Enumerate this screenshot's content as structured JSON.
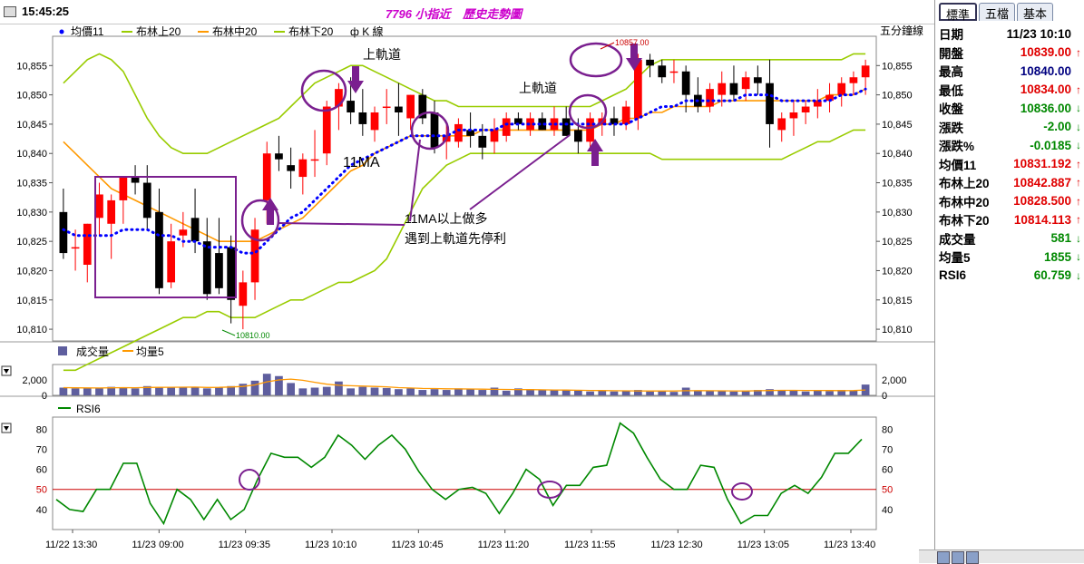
{
  "header": {
    "clock": "15:45:25",
    "title": "7796 小指近",
    "subtitle": "歷史走勢圖"
  },
  "colors": {
    "bull": "#ff0000",
    "bear": "#000000",
    "ma11": "#0000ff",
    "boll_upper": "#99cc00",
    "boll_mid": "#ff9900",
    "boll_lower": "#99cc00",
    "annotation": "#7a1f8f",
    "volume": "#5e5e9e",
    "rsi": "#008800",
    "rsi_ref": "#cc0000"
  },
  "chart_data": [
    {
      "type": "candlestick",
      "legend": [
        "均價11",
        "布林上20",
        "布林中20",
        "布林下20",
        "ф K 線"
      ],
      "y_axis_label": "五分鐘線",
      "ylim": [
        10808,
        10860
      ],
      "yticks": [
        10810,
        10815,
        10820,
        10825,
        10830,
        10835,
        10840,
        10845,
        10850,
        10855
      ],
      "ytick_labels": [
        "10,810",
        "10,815",
        "10,820",
        "10,825",
        "10,830",
        "10,835",
        "10,840",
        "10,845",
        "10,850",
        "10,855"
      ],
      "candles": [
        {
          "o": 10830,
          "h": 10834,
          "l": 10822,
          "c": 10823
        },
        {
          "o": 10824,
          "h": 10827,
          "l": 10820,
          "c": 10824
        },
        {
          "o": 10821,
          "h": 10828,
          "l": 10818,
          "c": 10828
        },
        {
          "o": 10829,
          "h": 10835,
          "l": 10826,
          "c": 10833
        },
        {
          "o": 10828,
          "h": 10833,
          "l": 10822,
          "c": 10832
        },
        {
          "o": 10832,
          "h": 10836,
          "l": 10828,
          "c": 10836
        },
        {
          "o": 10836,
          "h": 10838,
          "l": 10833,
          "c": 10835
        },
        {
          "o": 10835,
          "h": 10838,
          "l": 10827,
          "c": 10829
        },
        {
          "o": 10830,
          "h": 10834,
          "l": 10816,
          "c": 10817
        },
        {
          "o": 10818,
          "h": 10828,
          "l": 10817,
          "c": 10825
        },
        {
          "o": 10826,
          "h": 10830,
          "l": 10824,
          "c": 10827
        },
        {
          "o": 10829,
          "h": 10834,
          "l": 10823,
          "c": 10825
        },
        {
          "o": 10825,
          "h": 10829,
          "l": 10815,
          "c": 10816
        },
        {
          "o": 10823,
          "h": 10829,
          "l": 10816,
          "c": 10817
        },
        {
          "o": 10824,
          "h": 10826,
          "l": 10811,
          "c": 10815
        },
        {
          "o": 10814,
          "h": 10820,
          "l": 10810,
          "c": 10818
        },
        {
          "o": 10818,
          "h": 10829,
          "l": 10815,
          "c": 10827
        },
        {
          "o": 10832,
          "h": 10842,
          "l": 10828,
          "c": 10840
        },
        {
          "o": 10840,
          "h": 10843,
          "l": 10837,
          "c": 10839
        },
        {
          "o": 10838,
          "h": 10841,
          "l": 10834,
          "c": 10837
        },
        {
          "o": 10836,
          "h": 10840,
          "l": 10833,
          "c": 10839
        },
        {
          "o": 10839,
          "h": 10844,
          "l": 10836,
          "c": 10839
        },
        {
          "o": 10840,
          "h": 10849,
          "l": 10838,
          "c": 10848
        },
        {
          "o": 10848,
          "h": 10852,
          "l": 10844,
          "c": 10851
        },
        {
          "o": 10849,
          "h": 10853,
          "l": 10845,
          "c": 10847
        },
        {
          "o": 10847,
          "h": 10851,
          "l": 10843,
          "c": 10845
        },
        {
          "o": 10844,
          "h": 10848,
          "l": 10842,
          "c": 10847
        },
        {
          "o": 10848,
          "h": 10851,
          "l": 10845,
          "c": 10848
        },
        {
          "o": 10848,
          "h": 10852,
          "l": 10843,
          "c": 10847
        },
        {
          "o": 10846,
          "h": 10850,
          "l": 10844,
          "c": 10850
        },
        {
          "o": 10850,
          "h": 10851,
          "l": 10845,
          "c": 10846
        },
        {
          "o": 10847,
          "h": 10849,
          "l": 10840,
          "c": 10841
        },
        {
          "o": 10842,
          "h": 10845,
          "l": 10839,
          "c": 10843
        },
        {
          "o": 10842,
          "h": 10846,
          "l": 10841,
          "c": 10845
        },
        {
          "o": 10844,
          "h": 10847,
          "l": 10841,
          "c": 10843
        },
        {
          "o": 10843,
          "h": 10845,
          "l": 10839,
          "c": 10841
        },
        {
          "o": 10842,
          "h": 10846,
          "l": 10840,
          "c": 10844
        },
        {
          "o": 10843,
          "h": 10847,
          "l": 10842,
          "c": 10846
        },
        {
          "o": 10846,
          "h": 10847,
          "l": 10844,
          "c": 10845
        },
        {
          "o": 10844,
          "h": 10847,
          "l": 10843,
          "c": 10846
        },
        {
          "o": 10846,
          "h": 10847,
          "l": 10844,
          "c": 10844
        },
        {
          "o": 10844,
          "h": 10848,
          "l": 10843,
          "c": 10846
        },
        {
          "o": 10846,
          "h": 10848,
          "l": 10843,
          "c": 10843
        },
        {
          "o": 10844,
          "h": 10846,
          "l": 10840,
          "c": 10842
        },
        {
          "o": 10842,
          "h": 10847,
          "l": 10841,
          "c": 10846
        },
        {
          "o": 10845,
          "h": 10847,
          "l": 10843,
          "c": 10846
        },
        {
          "o": 10846,
          "h": 10848,
          "l": 10843,
          "c": 10845
        },
        {
          "o": 10845,
          "h": 10849,
          "l": 10844,
          "c": 10848
        },
        {
          "o": 10846,
          "h": 10857,
          "l": 10844,
          "c": 10856
        },
        {
          "o": 10856,
          "h": 10857,
          "l": 10853,
          "c": 10855
        },
        {
          "o": 10855,
          "h": 10856,
          "l": 10852,
          "c": 10853
        },
        {
          "o": 10854,
          "h": 10856,
          "l": 10852,
          "c": 10854
        },
        {
          "o": 10854,
          "h": 10855,
          "l": 10847,
          "c": 10850
        },
        {
          "o": 10850,
          "h": 10853,
          "l": 10847,
          "c": 10848
        },
        {
          "o": 10848,
          "h": 10852,
          "l": 10847,
          "c": 10851
        },
        {
          "o": 10850,
          "h": 10854,
          "l": 10848,
          "c": 10852
        },
        {
          "o": 10852,
          "h": 10855,
          "l": 10849,
          "c": 10850
        },
        {
          "o": 10851,
          "h": 10854,
          "l": 10849,
          "c": 10853
        },
        {
          "o": 10853,
          "h": 10855,
          "l": 10850,
          "c": 10852
        },
        {
          "o": 10852,
          "h": 10856,
          "l": 10841,
          "c": 10845
        },
        {
          "o": 10844,
          "h": 10847,
          "l": 10842,
          "c": 10846
        },
        {
          "o": 10846,
          "h": 10849,
          "l": 10843,
          "c": 10847
        },
        {
          "o": 10847,
          "h": 10849,
          "l": 10845,
          "c": 10848
        },
        {
          "o": 10848,
          "h": 10851,
          "l": 10846,
          "c": 10849
        },
        {
          "o": 10849,
          "h": 10852,
          "l": 10847,
          "c": 10850
        },
        {
          "o": 10850,
          "h": 10853,
          "l": 10848,
          "c": 10852
        },
        {
          "o": 10852,
          "h": 10854,
          "l": 10850,
          "c": 10853
        },
        {
          "o": 10853,
          "h": 10856,
          "l": 10850,
          "c": 10855
        }
      ],
      "ma11": [
        10827,
        10826,
        10826,
        10826,
        10826,
        10827,
        10827,
        10827,
        10826,
        10826,
        10825,
        10825,
        10824,
        10824,
        10824,
        10823,
        10823,
        10825,
        10827,
        10829,
        10830,
        10832,
        10834,
        10836,
        10838,
        10839,
        10840,
        10841,
        10842,
        10843,
        10843,
        10843,
        10843,
        10844,
        10844,
        10844,
        10844,
        10845,
        10845,
        10845,
        10845,
        10845,
        10845,
        10845,
        10845,
        10845,
        10845,
        10845,
        10846,
        10847,
        10848,
        10848,
        10849,
        10849,
        10849,
        10849,
        10849,
        10850,
        10850,
        10850,
        10849,
        10849,
        10849,
        10849,
        10849,
        10850,
        10850,
        10851
      ],
      "boll_upper": [
        10852,
        10854,
        10856,
        10857,
        10856,
        10854,
        10850,
        10846,
        10843,
        10841,
        10840,
        10840,
        10840,
        10841,
        10842,
        10843,
        10844,
        10845,
        10846,
        10848,
        10850,
        10852,
        10853,
        10854,
        10855,
        10855,
        10854,
        10853,
        10852,
        10851,
        10850,
        10849,
        10849,
        10848,
        10848,
        10848,
        10848,
        10848,
        10848,
        10848,
        10848,
        10848,
        10848,
        10848,
        10848,
        10849,
        10850,
        10851,
        10853,
        10855,
        10856,
        10856,
        10856,
        10856,
        10856,
        10856,
        10856,
        10856,
        10856,
        10856,
        10856,
        10856,
        10856,
        10856,
        10856,
        10856,
        10857,
        10857
      ],
      "boll_mid": [
        10842,
        10840,
        10838,
        10836,
        10834,
        10833,
        10832,
        10831,
        10830,
        10829,
        10828,
        10827,
        10826,
        10825,
        10825,
        10825,
        10825,
        10826,
        10827,
        10828,
        10829,
        10831,
        10833,
        10835,
        10837,
        10838,
        10840,
        10841,
        10842,
        10843,
        10843,
        10843,
        10843,
        10843,
        10843,
        10844,
        10844,
        10844,
        10844,
        10844,
        10844,
        10844,
        10844,
        10844,
        10844,
        10845,
        10845,
        10846,
        10846,
        10847,
        10847,
        10848,
        10848,
        10848,
        10848,
        10849,
        10849,
        10849,
        10849,
        10849,
        10849,
        10849,
        10849,
        10849,
        10850,
        10850,
        10850,
        10851
      ],
      "boll_lower": [
        10803,
        10803,
        10804,
        10805,
        10806,
        10807,
        10808,
        10809,
        10810,
        10811,
        10812,
        10812,
        10813,
        10813,
        10812,
        10812,
        10812,
        10813,
        10814,
        10815,
        10815,
        10816,
        10817,
        10818,
        10818,
        10819,
        10820,
        10822,
        10826,
        10830,
        10834,
        10836,
        10838,
        10839,
        10840,
        10840,
        10840,
        10840,
        10840,
        10840,
        10840,
        10840,
        10840,
        10840,
        10840,
        10840,
        10840,
        10840,
        10840,
        10840,
        10839,
        10839,
        10839,
        10839,
        10839,
        10839,
        10839,
        10839,
        10839,
        10839,
        10839,
        10840,
        10841,
        10842,
        10842,
        10843,
        10844,
        10844
      ],
      "annotations": [
        {
          "text": "上軌道",
          "kind": "label"
        },
        {
          "text": "上軌道",
          "kind": "label"
        },
        {
          "text": "11MA",
          "kind": "label"
        },
        {
          "text": "11MA以上做多",
          "kind": "label"
        },
        {
          "text": "遇到上軌道先停利",
          "kind": "label"
        },
        {
          "text": "10857.00",
          "kind": "high"
        },
        {
          "text": "10810.00",
          "kind": "low"
        }
      ]
    },
    {
      "type": "bar",
      "legend": [
        "成交量",
        "均量5"
      ],
      "ylim": [
        0,
        4000
      ],
      "yticks": [
        0,
        2000
      ],
      "ytick_labels": [
        "0",
        "2,000"
      ],
      "values": [
        1000,
        900,
        950,
        900,
        1100,
        1050,
        900,
        1200,
        1050,
        1100,
        1000,
        1100,
        900,
        1050,
        1200,
        1500,
        1900,
        2800,
        2500,
        1600,
        900,
        1000,
        1100,
        1800,
        900,
        1100,
        1000,
        950,
        800,
        900,
        700,
        800,
        700,
        900,
        800,
        700,
        1000,
        600,
        900,
        800,
        700,
        650,
        700,
        600,
        500,
        650,
        500,
        600,
        700,
        500,
        600,
        450,
        1000,
        650,
        550,
        600,
        500,
        550,
        700,
        800,
        700,
        600,
        500,
        650,
        550,
        700,
        600,
        1400
      ],
      "ma5": [
        1000,
        980,
        970,
        950,
        980,
        1000,
        990,
        1020,
        1040,
        1050,
        1060,
        1070,
        1020,
        1040,
        1080,
        1150,
        1350,
        1750,
        2000,
        2100,
        1950,
        1700,
        1450,
        1300,
        1250,
        1200,
        1150,
        1100,
        1000,
        950,
        900,
        880,
        850,
        830,
        820,
        800,
        780,
        760,
        750,
        740,
        720,
        700,
        680,
        660,
        640,
        620,
        600,
        590,
        580,
        570,
        570,
        560,
        600,
        610,
        600,
        590,
        580,
        570,
        600,
        620,
        650,
        650,
        640,
        630,
        620,
        610,
        620,
        700
      ]
    },
    {
      "type": "line",
      "legend": [
        "RSI6"
      ],
      "ylim": [
        30,
        86
      ],
      "yticks": [
        40,
        50,
        60,
        70,
        80
      ],
      "ytick_labels": [
        "40",
        "50",
        "60",
        "70",
        "80"
      ],
      "reference": 50,
      "x_labels": [
        "11/22 13:30",
        "11/23 09:00",
        "11/23 09:35",
        "11/23 10:10",
        "11/23 10:45",
        "11/23 11:20",
        "11/23 11:55",
        "11/23 12:30",
        "11/23 13:05",
        "11/23 13:40"
      ],
      "values": [
        45,
        40,
        39,
        50,
        50,
        63,
        63,
        43,
        33,
        50,
        45,
        35,
        45,
        35,
        40,
        55,
        68,
        66,
        66,
        61,
        66,
        77,
        72,
        65,
        72,
        77,
        70,
        59,
        50,
        45,
        50,
        51,
        48,
        38,
        48,
        60,
        55,
        42,
        52,
        52,
        61,
        62,
        83,
        78,
        66,
        55,
        50,
        50,
        62,
        61,
        45,
        33,
        37,
        37,
        48,
        52,
        48,
        56,
        68,
        68,
        75
      ]
    }
  ],
  "sidebar": {
    "tabs": [
      {
        "label": "標準",
        "active": true
      },
      {
        "label": "五檔",
        "active": false
      },
      {
        "label": "基本",
        "active": false
      }
    ],
    "rows": [
      {
        "label": "日期",
        "value": "11/23 10:10",
        "arrow": "",
        "color": "blk"
      },
      {
        "label": "開盤",
        "value": "10839.00",
        "arrow": "↑",
        "color": "up"
      },
      {
        "label": "最高",
        "value": "10840.00",
        "arrow": "",
        "color": "blue"
      },
      {
        "label": "最低",
        "value": "10834.00",
        "arrow": "↑",
        "color": "up"
      },
      {
        "label": "收盤",
        "value": "10836.00",
        "arrow": "↓",
        "color": "down"
      },
      {
        "label": "漲跌",
        "value": "-2.00",
        "arrow": "↓",
        "color": "down"
      },
      {
        "label": "漲跌%",
        "value": "-0.0185",
        "arrow": "↓",
        "color": "down"
      },
      {
        "label": "均價11",
        "value": "10831.192",
        "arrow": "↑",
        "color": "up"
      },
      {
        "label": "布林上20",
        "value": "10842.887",
        "arrow": "↑",
        "color": "up"
      },
      {
        "label": "布林中20",
        "value": "10828.500",
        "arrow": "↑",
        "color": "up"
      },
      {
        "label": "布林下20",
        "value": "10814.113",
        "arrow": "↑",
        "color": "up"
      },
      {
        "label": "成交量",
        "value": "581",
        "arrow": "↓",
        "color": "down"
      },
      {
        "label": "均量5",
        "value": "1855",
        "arrow": "↓",
        "color": "down"
      },
      {
        "label": "RSI6",
        "value": "60.759",
        "arrow": "↓",
        "color": "down"
      }
    ]
  }
}
